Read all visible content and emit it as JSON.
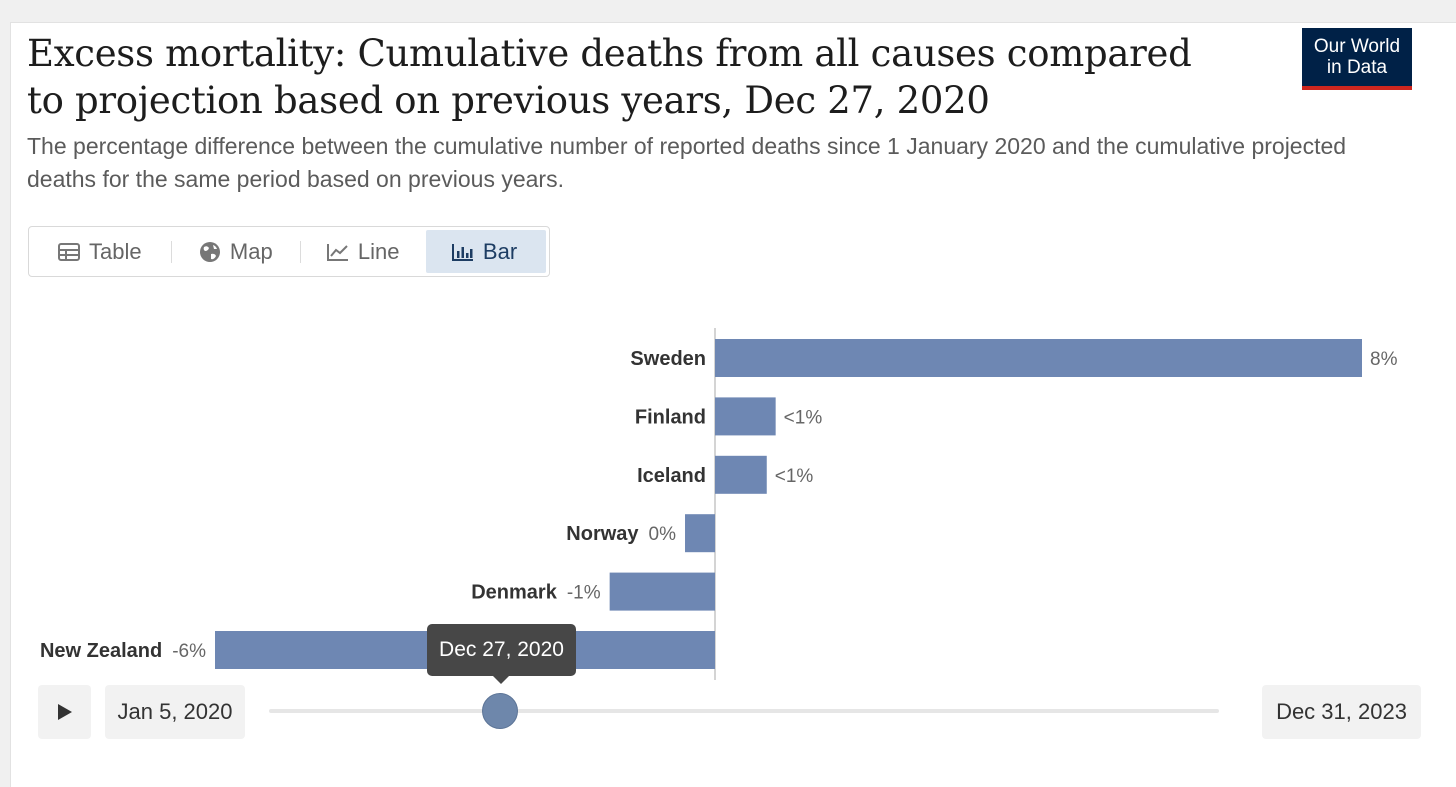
{
  "header": {
    "title": "Excess mortality: Cumulative deaths from all causes compared to projection based on previous years, Dec 27, 2020",
    "subtitle": "The percentage difference between the cumulative number of reported deaths since 1 January 2020 and the cumulative projected deaths for the same period based on previous years.",
    "logo_line1": "Our World",
    "logo_line2": "in Data"
  },
  "tabs": [
    {
      "label": "Table",
      "icon": "table-icon"
    },
    {
      "label": "Map",
      "icon": "globe-icon"
    },
    {
      "label": "Line",
      "icon": "line-chart-icon"
    },
    {
      "label": "Bar",
      "icon": "bar-chart-icon",
      "active": true
    }
  ],
  "timeline": {
    "start_label": "Jan 5, 2020",
    "end_label": "Dec 31, 2023",
    "current_label": "Dec 27, 2020",
    "position_fraction": 0.244
  },
  "colors": {
    "bar": "#6e87b3",
    "logo_bg": "#002147",
    "logo_accent": "#ce261e"
  },
  "chart_data": {
    "type": "bar",
    "orientation": "horizontal",
    "title": "Excess mortality: Cumulative deaths from all causes compared to projection based on previous years, Dec 27, 2020",
    "categories": [
      "Sweden",
      "Finland",
      "Iceland",
      "Norway",
      "Denmark",
      "New Zealand"
    ],
    "values": [
      8.0,
      0.75,
      0.64,
      -0.37,
      -1.3,
      -6.17
    ],
    "value_labels": [
      "8%",
      "<1%",
      "<1%",
      "0%",
      "-1%",
      "-6%"
    ],
    "xlim": [
      -6.17,
      8.0
    ],
    "unit": "%"
  }
}
